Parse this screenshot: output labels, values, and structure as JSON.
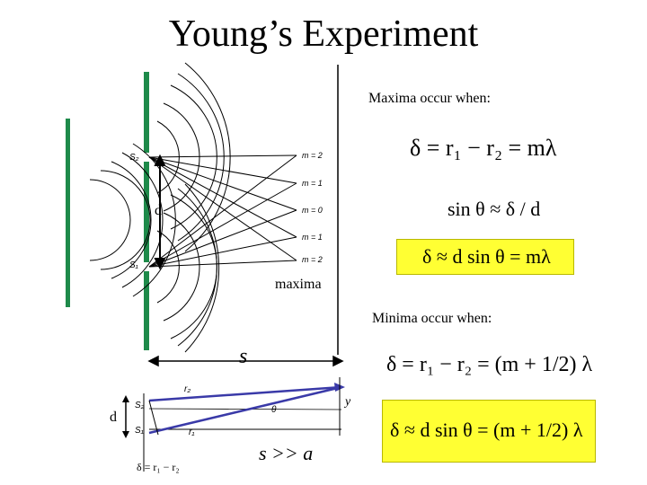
{
  "slide": {
    "title": "Young’s Experiment",
    "maxima_heading": "Maxima occur when:",
    "minima_heading": "Minima occur when:",
    "maxima_label": "maxima"
  },
  "equations": {
    "max_path": "δ = r₁ − r₂ = mλ",
    "sin_approx": "sin θ ≈ δ / d",
    "max_boxed": "δ ≈ d sin θ = mλ",
    "min_path": "δ = r₁ − r₂ = (m + 1/2) λ",
    "min_boxed": "δ ≈ d sin θ = (m + 1/2) λ"
  },
  "diagram": {
    "slit_top": "S₂",
    "slit_bottom": "S₁",
    "separation": "d",
    "m_labels": [
      "m = 2",
      "m = 1",
      "m = 0",
      "m = 1",
      "m = 2"
    ],
    "distance": "s"
  },
  "geometry_inset": {
    "r2": "r₂",
    "r1": "r₁",
    "theta": "θ",
    "y": "y",
    "d": "d",
    "s2": "S₂",
    "s1": "S₁",
    "delta": "δ = r₁ − r₂",
    "condition": "s >> a"
  },
  "colors": {
    "slit_green": "#1e8a4a",
    "box_yellow": "#ffff33",
    "ray_blue": "#3a3aa8"
  }
}
